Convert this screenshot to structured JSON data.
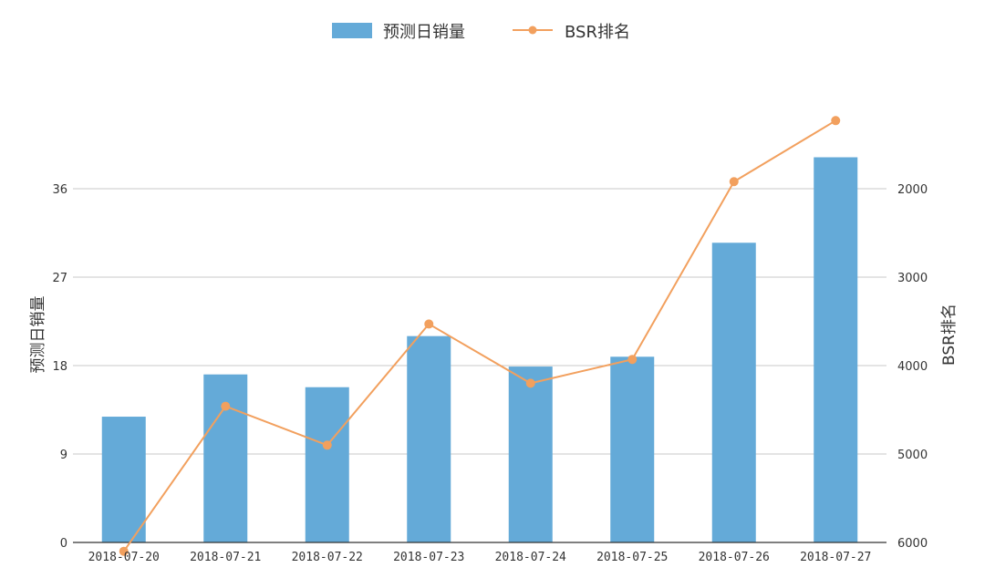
{
  "chart_data": {
    "type": "bar",
    "categories": [
      "2018-07-20",
      "2018-07-21",
      "2018-07-22",
      "2018-07-23",
      "2018-07-24",
      "2018-07-25",
      "2018-07-26",
      "2018-07-27"
    ],
    "series": [
      {
        "name": "预测日销量",
        "type": "bar",
        "axis": "left",
        "color": "#64aad8",
        "values": [
          12.8,
          17.1,
          15.8,
          21.0,
          17.9,
          18.9,
          30.5,
          39.2
        ]
      },
      {
        "name": "BSR排名",
        "type": "line",
        "axis": "right",
        "color": "#f2a05e",
        "values": [
          6100,
          4460,
          4900,
          3530,
          4200,
          3930,
          1920,
          1230
        ]
      }
    ],
    "xlabel": "",
    "ylabel": "预测日销量",
    "y2label": "BSR排名",
    "ylim": [
      0,
      36
    ],
    "yticks": [
      0,
      9,
      18,
      27,
      36
    ],
    "y2lim": [
      6000,
      2000
    ],
    "y2ticks": [
      6000,
      5000,
      4000,
      3000,
      2000
    ],
    "y2_inverted": true,
    "grid": true,
    "legend": "top-center"
  }
}
